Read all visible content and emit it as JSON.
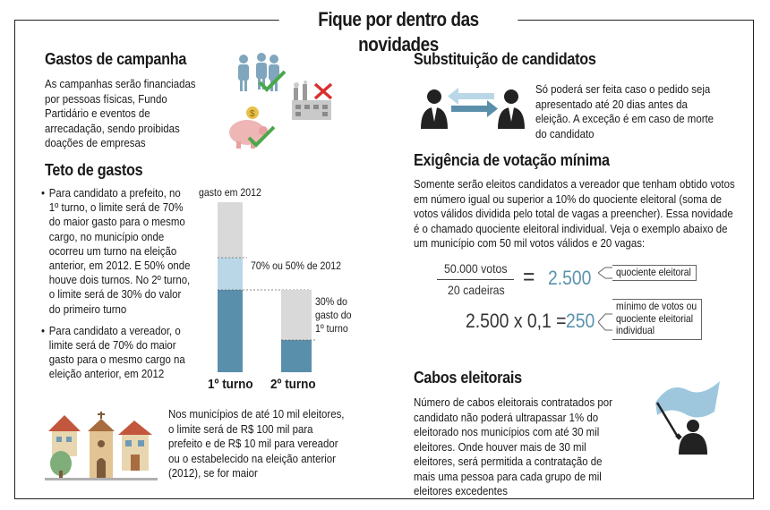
{
  "title": "Fique por dentro das novidades",
  "gastos": {
    "heading": "Gastos de campanha",
    "text": "As campanhas serão financiadas por pessoas físicas, Fundo Partidário e eventos de arrecadação, sendo proibidas doações de empresas"
  },
  "teto": {
    "heading": "Teto de gastos",
    "bullets": [
      "Para candidato a prefeito, no 1º turno, o limite será de 70% do maior gasto para o mesmo cargo, no município onde ocorreu um turno na eleição anterior, em 2012. E 50% onde houve dois turnos. No 2º turno, o limite será de 30% do valor do primeiro turno",
      "Para candidato a vereador, o limite será de 70% do maior gasto para o mesmo cargo na eleição anterior, em 2012"
    ],
    "chart": {
      "label_top": "gasto em 2012",
      "label_mid": "70% ou 50% de 2012",
      "label_second": "30% do gasto do 1º turno",
      "turn1": "1º turno",
      "turn2": "2º turno",
      "colors": {
        "total": "#d9d9d9",
        "light": "#b9d7e6",
        "dark": "#5a8fab"
      }
    }
  },
  "municipios": {
    "text": "Nos municípios de até 10 mil eleitores, o limite será de R$ 100 mil para prefeito e de R$ 10 mil para vereador ou o estabelecido na eleição anterior (2012), se for maior"
  },
  "substituicao": {
    "heading": "Substituição de candidatos",
    "text": "Só poderá ser feita caso o pedido seja apresentado até 20 dias antes da eleição. A exceção é em caso de morte do candidato"
  },
  "votacao": {
    "heading": "Exigência de votação mínima",
    "text": "Somente serão eleitos candidatos a vereador que tenham obtido votos em número igual ou superior a 10% do quociente eleitoral (soma de votos válidos dividida pelo total de vagas a preencher). Essa novidade é o chamado quociente eleitoral individual. Veja o exemplo abaixo de um município com 50 mil votos válidos e 20 vagas:",
    "numerator": "50.000 votos",
    "denominator": "20 cadeiras",
    "equals": "=",
    "result1": "2.500",
    "callout1": "quociente eleitoral",
    "expr2": "2.500 x 0,1 =",
    "result2": "250",
    "callout2": [
      "mínimo de votos ou",
      "quociente eleitorial",
      "individual"
    ]
  },
  "cabos": {
    "heading": "Cabos eleitorais",
    "text": "Número de cabos eleitorais contratados por candidato não poderá ultrapassar 1% do eleitorado nos municípios com até 30 mil eleitores. Onde houver mais de 30 mil eleitores, será permitida a contratação de mais uma pessoa para cada grupo de mil eleitores excedentes"
  }
}
